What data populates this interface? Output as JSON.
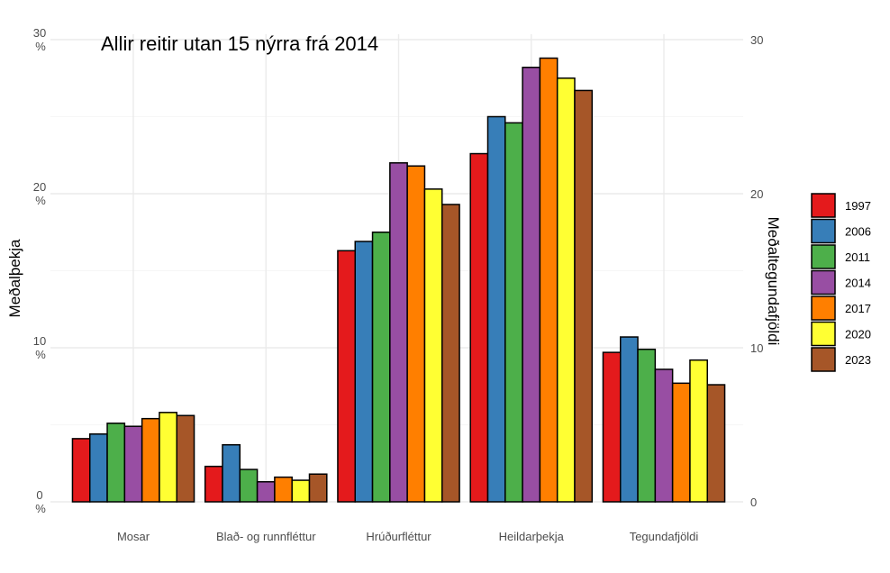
{
  "chart_data": {
    "type": "bar",
    "title": "Allir reitir utan 15 nýrra frá 2014",
    "ylabel": "Meðalþekja",
    "y2label": "Meðaltegundafjöldi",
    "ylim": [
      0,
      30
    ],
    "yticks": [
      {
        "value": 0,
        "line1": "0",
        "line2": "%"
      },
      {
        "value": 10,
        "line1": "10",
        "line2": "%"
      },
      {
        "value": 20,
        "line1": "20",
        "line2": "%"
      },
      {
        "value": 30,
        "line1": "30",
        "line2": "%"
      }
    ],
    "y2ticks": [
      "0",
      "10",
      "20",
      "30"
    ],
    "categories": [
      "Mosar",
      "Blað- og runnfléttur",
      "Hrúðurfléttur",
      "Heildarþekja",
      "Tegundafjöldi"
    ],
    "series": [
      {
        "name": "1997",
        "color": "#E41A1C",
        "values": [
          4.1,
          2.3,
          16.3,
          22.6,
          9.7
        ]
      },
      {
        "name": "2006",
        "color": "#377EB8",
        "values": [
          4.4,
          3.7,
          16.9,
          25.0,
          10.7
        ]
      },
      {
        "name": "2011",
        "color": "#4DAF4A",
        "values": [
          5.1,
          2.1,
          17.5,
          24.6,
          9.9
        ]
      },
      {
        "name": "2014",
        "color": "#984EA3",
        "values": [
          4.9,
          1.3,
          22.0,
          28.2,
          8.6
        ]
      },
      {
        "name": "2017",
        "color": "#FF7F00",
        "values": [
          5.4,
          1.6,
          21.8,
          28.8,
          7.7
        ]
      },
      {
        "name": "2020",
        "color": "#FFFF33",
        "values": [
          5.8,
          1.4,
          20.3,
          27.5,
          9.2
        ]
      },
      {
        "name": "2023",
        "color": "#A65628",
        "values": [
          5.6,
          1.8,
          19.3,
          26.7,
          7.6
        ]
      }
    ],
    "grid": true,
    "legend_position": "right"
  }
}
